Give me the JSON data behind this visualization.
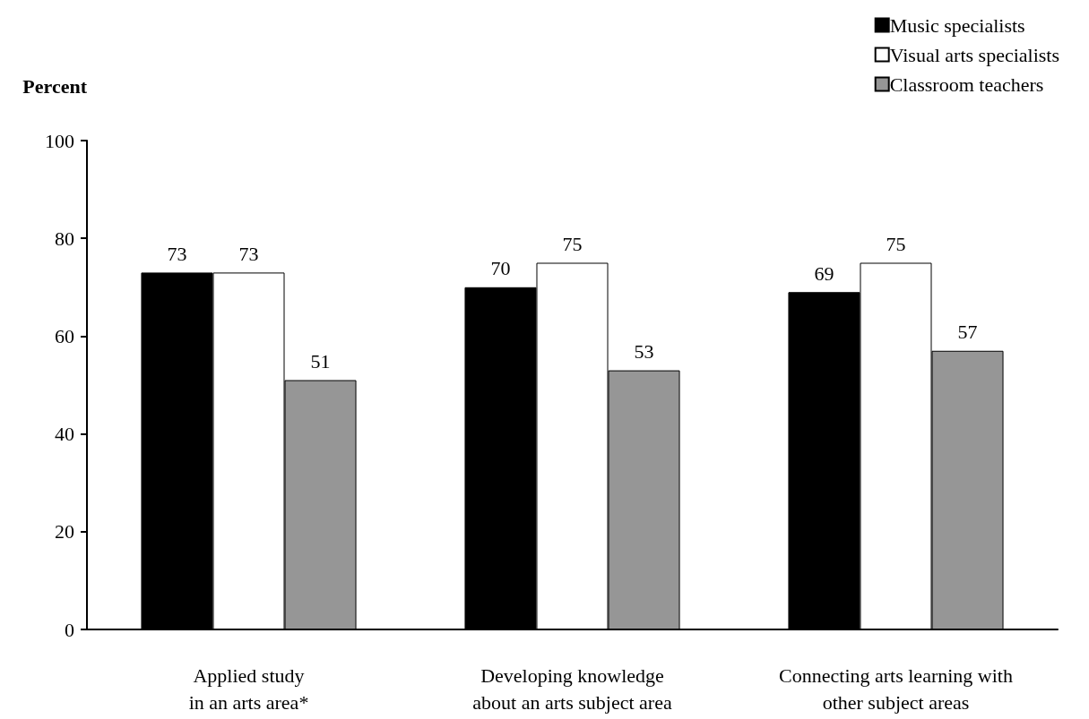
{
  "chart_data": {
    "type": "bar",
    "ylabel": "Percent",
    "categories": [
      "Applied study\nin an arts area*",
      "Developing knowledge\nabout an arts subject area",
      "Connecting arts learning with\nother subject areas"
    ],
    "series": [
      {
        "name": "Music specialists",
        "color": "#000000",
        "values": [
          73,
          70,
          69
        ]
      },
      {
        "name": "Visual arts specialists",
        "color": "#ffffff",
        "values": [
          73,
          75,
          75
        ]
      },
      {
        "name": "Classroom teachers",
        "color": "#969696",
        "values": [
          51,
          53,
          57
        ]
      }
    ],
    "ylim": [
      0,
      100
    ],
    "yticks": [
      0,
      20,
      40,
      60,
      80,
      100
    ],
    "grid": false,
    "legend": "top right",
    "data_labels": true
  }
}
